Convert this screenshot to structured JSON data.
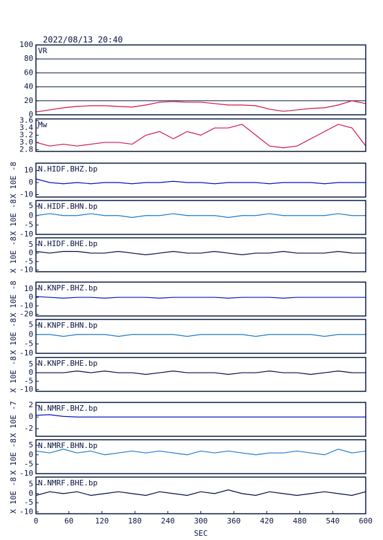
{
  "chart_data": [
    {
      "type": "line",
      "title": "2022/08/13 20:40",
      "label": "VR",
      "color": "#d0104a",
      "grid": true,
      "x": [
        0,
        25,
        50,
        75,
        100,
        125,
        150,
        175,
        200,
        225,
        250,
        275,
        300,
        325,
        350,
        375,
        400,
        425,
        450,
        475,
        500,
        525,
        550,
        575,
        600
      ],
      "values": [
        4,
        7,
        10,
        12,
        13,
        13,
        12,
        11,
        14,
        18,
        19,
        18,
        18,
        16,
        14,
        14,
        13,
        8,
        5,
        7,
        9,
        10,
        14,
        20,
        16
      ],
      "xlim": [
        0,
        600
      ],
      "ylim": [
        0,
        100
      ],
      "yticks": [
        0,
        20,
        40,
        60,
        80,
        100
      ]
    },
    {
      "type": "line",
      "label": "Mw",
      "color": "#d0104a",
      "x": [
        0,
        25,
        50,
        75,
        100,
        125,
        150,
        175,
        200,
        225,
        250,
        275,
        300,
        325,
        350,
        375,
        400,
        425,
        450,
        475,
        500,
        525,
        550,
        575,
        600
      ],
      "values": [
        3.0,
        2.9,
        2.95,
        2.9,
        2.95,
        3.0,
        3.0,
        2.95,
        3.2,
        3.3,
        3.1,
        3.3,
        3.2,
        3.4,
        3.4,
        3.5,
        3.2,
        2.9,
        2.85,
        2.9,
        3.1,
        3.3,
        3.5,
        3.4,
        2.9
      ],
      "xlim": [
        0,
        600
      ],
      "ylim": [
        2.75,
        3.65
      ],
      "yticks": [
        {
          "value": 2.8,
          "label": "2.8"
        },
        {
          "value": 3.0,
          "label": "3.0"
        },
        {
          "value": 3.2,
          "label": "3.2"
        },
        {
          "value": 3.4,
          "label": "3.4"
        },
        {
          "value": 3.6,
          "label": "3.6"
        }
      ]
    },
    {
      "type": "line",
      "label": "N.HIDF.BHZ.bp",
      "ylabel": "X 10E -8",
      "color": "#0010c0",
      "x": [
        0,
        25,
        50,
        75,
        100,
        125,
        150,
        175,
        200,
        225,
        250,
        275,
        300,
        325,
        350,
        375,
        400,
        425,
        450,
        475,
        500,
        525,
        550,
        575,
        600
      ],
      "values": [
        3,
        0,
        -1,
        0,
        -1,
        0,
        0,
        -1,
        0,
        0,
        1,
        0,
        0,
        -1,
        0,
        0,
        0,
        -1,
        0,
        0,
        0,
        -1,
        0,
        0,
        0
      ],
      "xlim": [
        0,
        600
      ],
      "ylim": [
        -12,
        16
      ],
      "yticks": [
        -10,
        0,
        10
      ]
    },
    {
      "type": "line",
      "label": "N.HIDF.BHN.bp",
      "ylabel": "X 10E -8",
      "color": "#1a78c8",
      "x": [
        0,
        25,
        50,
        75,
        100,
        125,
        150,
        175,
        200,
        225,
        250,
        275,
        300,
        325,
        350,
        375,
        400,
        425,
        450,
        475,
        500,
        525,
        550,
        575,
        600
      ],
      "values": [
        0,
        1,
        0,
        0,
        1,
        0,
        0,
        -1,
        0,
        0,
        1,
        0,
        0,
        0,
        -1,
        0,
        0,
        1,
        0,
        0,
        0,
        0,
        1,
        0,
        0
      ],
      "xlim": [
        0,
        600
      ],
      "ylim": [
        -10,
        8
      ],
      "yticks": [
        -10,
        -5,
        0,
        5
      ]
    },
    {
      "type": "line",
      "label": "N.HIDF.BHE.bp",
      "ylabel": "X 10E -8",
      "color": "#000840",
      "x": [
        0,
        25,
        50,
        75,
        100,
        125,
        150,
        175,
        200,
        225,
        250,
        275,
        300,
        325,
        350,
        375,
        400,
        425,
        450,
        475,
        500,
        525,
        550,
        575,
        600
      ],
      "values": [
        1,
        0,
        1,
        1,
        0,
        0,
        1,
        0,
        -1,
        0,
        1,
        0,
        0,
        1,
        0,
        -1,
        0,
        0,
        1,
        0,
        0,
        0,
        1,
        0,
        0
      ],
      "xlim": [
        0,
        600
      ],
      "ylim": [
        -11,
        9
      ],
      "yticks": [
        -10,
        -5,
        0,
        5
      ]
    },
    {
      "type": "line",
      "label": "N.KNPF.BHZ.bp",
      "ylabel": "X 10E -8",
      "color": "#0010c0",
      "x": [
        0,
        25,
        50,
        75,
        100,
        125,
        150,
        175,
        200,
        225,
        250,
        275,
        300,
        325,
        350,
        375,
        400,
        425,
        450,
        475,
        500,
        525,
        550,
        575,
        600
      ],
      "values": [
        1,
        0,
        -1,
        0,
        0,
        -1,
        0,
        0,
        0,
        -1,
        0,
        0,
        0,
        0,
        -1,
        0,
        0,
        0,
        -1,
        0,
        0,
        0,
        0,
        0,
        0
      ],
      "xlim": [
        0,
        600
      ],
      "ylim": [
        -22,
        18
      ],
      "yticks": [
        -20,
        -10,
        0,
        10
      ]
    },
    {
      "type": "line",
      "label": "N.KNPF.BHN.bp",
      "ylabel": "X 10E -8",
      "color": "#1a78c8",
      "x": [
        0,
        25,
        50,
        75,
        100,
        125,
        150,
        175,
        200,
        225,
        250,
        275,
        300,
        325,
        350,
        375,
        400,
        425,
        450,
        475,
        500,
        525,
        550,
        575,
        600
      ],
      "values": [
        0,
        0,
        -1,
        0,
        0,
        0,
        -1,
        0,
        0,
        0,
        0,
        -1,
        0,
        0,
        0,
        0,
        -1,
        0,
        0,
        0,
        0,
        -1,
        0,
        0,
        0
      ],
      "xlim": [
        0,
        600
      ],
      "ylim": [
        -10,
        8
      ],
      "yticks": [
        -10,
        -5,
        0,
        5
      ]
    },
    {
      "type": "line",
      "label": "N.KNPF.BHE.bp",
      "ylabel": "X 10E -8",
      "color": "#000840",
      "x": [
        0,
        25,
        50,
        75,
        100,
        125,
        150,
        175,
        200,
        225,
        250,
        275,
        300,
        325,
        350,
        375,
        400,
        425,
        450,
        475,
        500,
        525,
        550,
        575,
        600
      ],
      "values": [
        0,
        0,
        0,
        1,
        0,
        1,
        0,
        0,
        -1,
        0,
        1,
        0,
        0,
        0,
        -1,
        0,
        0,
        1,
        0,
        0,
        -1,
        0,
        1,
        0,
        0
      ],
      "xlim": [
        0,
        600
      ],
      "ylim": [
        -11,
        9
      ],
      "yticks": [
        -10,
        -5,
        0,
        5
      ]
    },
    {
      "type": "line",
      "label": "N.NMRF.BHZ.bp",
      "ylabel": "X 10E -7",
      "color": "#0010c0",
      "x": [
        0,
        25,
        50,
        75,
        100,
        125,
        150,
        175,
        200,
        225,
        250,
        275,
        300,
        325,
        350,
        375,
        400,
        425,
        450,
        475,
        500,
        525,
        550,
        575,
        600
      ],
      "values": [
        0.3,
        0.4,
        0.1,
        0,
        0,
        0,
        0,
        0,
        0,
        0,
        0,
        0,
        0,
        0,
        0,
        0,
        0,
        0,
        0,
        0,
        0,
        0,
        0,
        0,
        0
      ],
      "xlim": [
        0,
        600
      ],
      "ylim": [
        -3.3,
        2.5
      ],
      "yticks": [
        -2,
        0,
        2
      ]
    },
    {
      "type": "line",
      "label": "N.NMRF.BHN.bp",
      "ylabel": "X 10E -8",
      "color": "#1a78c8",
      "x": [
        0,
        25,
        50,
        75,
        100,
        125,
        150,
        175,
        200,
        225,
        250,
        275,
        300,
        325,
        350,
        375,
        400,
        425,
        450,
        475,
        500,
        525,
        550,
        575,
        600
      ],
      "values": [
        2,
        1,
        3,
        1,
        2,
        0,
        1,
        2,
        1,
        2,
        1,
        0,
        2,
        1,
        2,
        1,
        0,
        1,
        1,
        2,
        1,
        0,
        3,
        1,
        2
      ],
      "xlim": [
        0,
        600
      ],
      "ylim": [
        -10,
        8
      ],
      "yticks": [
        -10,
        -5,
        0,
        5
      ]
    },
    {
      "type": "line",
      "label": "N.NMRF.BHE.bp",
      "ylabel": "X 10E -8",
      "color": "#000840",
      "x": [
        0,
        25,
        50,
        75,
        100,
        125,
        150,
        175,
        200,
        225,
        250,
        275,
        300,
        325,
        350,
        375,
        400,
        425,
        450,
        475,
        500,
        525,
        550,
        575,
        600
      ],
      "values": [
        -1,
        1,
        0,
        1,
        -1,
        0,
        1,
        0,
        -1,
        1,
        0,
        -1,
        1,
        0,
        2,
        0,
        -1,
        1,
        0,
        -1,
        0,
        1,
        0,
        -1,
        1
      ],
      "xlim": [
        0,
        600
      ],
      "ylim": [
        -11,
        9
      ],
      "yticks": [
        -10,
        -5,
        0,
        5
      ],
      "xticks": [
        0,
        60,
        120,
        180,
        240,
        300,
        360,
        420,
        480,
        540,
        600
      ],
      "xlabel": "SEC"
    }
  ]
}
